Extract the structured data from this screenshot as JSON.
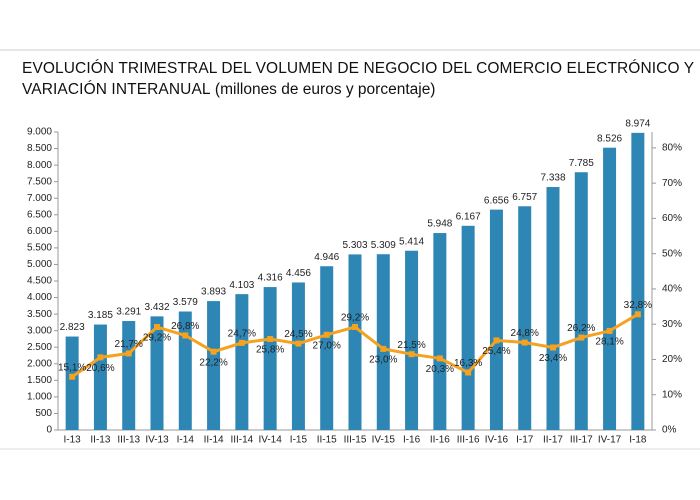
{
  "chart_data": {
    "type": "bar-line",
    "title": "EVOLUCIÓN TRIMESTRAL DEL VOLUMEN DE NEGOCIO DEL COMERCIO ELECTRÓNICO Y VARIACIÓN INTERANUAL",
    "subtitle": "(millones de euros y porcentaje)",
    "categories": [
      "I-13",
      "II-13",
      "III-13",
      "IV-13",
      "I-14",
      "II-14",
      "III-14",
      "IV-14",
      "I-15",
      "II-15",
      "III-15",
      "IV-15",
      "I-16",
      "II-16",
      "III-16",
      "IV-16",
      "I-17",
      "II-17",
      "III-17",
      "IV-17",
      "I-18"
    ],
    "series": [
      {
        "type": "bar",
        "axis": "y",
        "color": "#2e86b5",
        "values": [
          2823,
          3185,
          3291,
          3432,
          3579,
          3893,
          4103,
          4316,
          4456,
          4946,
          5303,
          5309,
          5414,
          5948,
          6167,
          6656,
          6757,
          7338,
          7785,
          8526,
          8974
        ],
        "value_labels": [
          "2.823",
          "3.185",
          "3.291",
          "3.432",
          "3.579",
          "3.893",
          "4.103",
          "4.316",
          "4.456",
          "4.946",
          "5.303",
          "5.309",
          "5.414",
          "5.948",
          "6.167",
          "6.656",
          "6.757",
          "7.338",
          "7.785",
          "8.526",
          "8.974"
        ]
      },
      {
        "type": "line",
        "axis": "y2",
        "color": "#f4a21f",
        "values": [
          15.1,
          20.6,
          21.7,
          29.2,
          26.8,
          22.2,
          24.7,
          25.8,
          24.5,
          27.0,
          29.2,
          23.0,
          21.5,
          20.3,
          16.3,
          25.4,
          24.8,
          23.4,
          26.2,
          28.1,
          32.8
        ],
        "value_labels": [
          "15,1%",
          "20,6%",
          "21,7%",
          "29,2%",
          "26,8%",
          "22,2%",
          "24,7%",
          "25,8%",
          "24,5%",
          "27,0%",
          "29,2%",
          "23,0%",
          "21,5%",
          "20,3%",
          "16,3%",
          "25,4%",
          "24,8%",
          "23,4%",
          "26,2%",
          "28,1%",
          "32,8%"
        ]
      }
    ],
    "ylim": [
      0,
      9000
    ],
    "yticks": [
      0,
      {
        "value": 500,
        "label": "500"
      },
      {
        "value": 1000,
        "label": "1.000"
      },
      {
        "value": 1500,
        "label": "1.500"
      },
      {
        "value": 2000,
        "label": "2.000"
      },
      {
        "value": 2500,
        "label": "2.500"
      },
      {
        "value": 3000,
        "label": "3.000"
      },
      {
        "value": 3500,
        "label": "3.500"
      },
      {
        "value": 4000,
        "label": "4.000"
      },
      {
        "value": 4500,
        "label": "4.500"
      },
      {
        "value": 5000,
        "label": "5.000"
      },
      {
        "value": 5500,
        "label": "5.500"
      },
      {
        "value": 6000,
        "label": "6.000"
      },
      {
        "value": 6500,
        "label": "6.500"
      },
      {
        "value": 7000,
        "label": "7.000"
      },
      {
        "value": 7500,
        "label": "7.500"
      },
      {
        "value": 8000,
        "label": "8.000"
      },
      {
        "value": 8500,
        "label": "8.500"
      },
      {
        "value": 9000,
        "label": "9.000"
      }
    ],
    "y2lim": [
      0,
      84.5
    ],
    "y2ticks": [
      {
        "value": 0,
        "label": "0%"
      },
      {
        "value": 10,
        "label": "10%"
      },
      {
        "value": 20,
        "label": "20%"
      },
      {
        "value": 30,
        "label": "30%"
      },
      {
        "value": 40,
        "label": "40%"
      },
      {
        "value": 50,
        "label": "50%"
      },
      {
        "value": 60,
        "label": "60%"
      },
      {
        "value": 70,
        "label": "70%"
      },
      {
        "value": 80,
        "label": "80%"
      }
    ]
  }
}
